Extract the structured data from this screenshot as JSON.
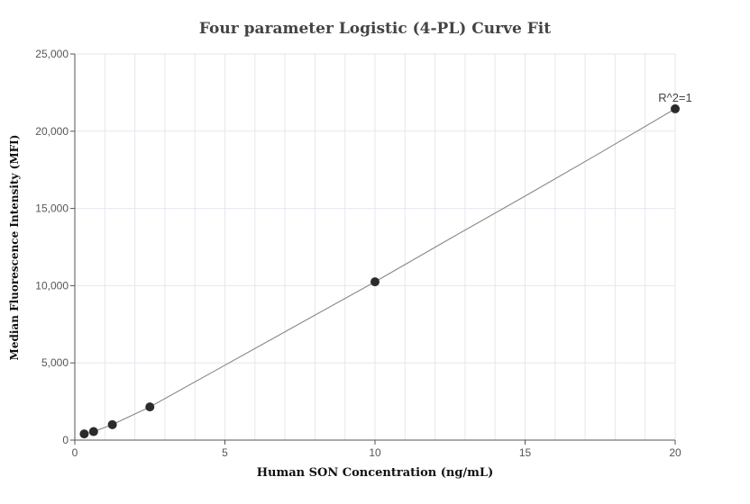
{
  "chart_data": {
    "type": "scatter",
    "title": "Four parameter Logistic (4-PL) Curve Fit",
    "xlabel": "Human SON Concentration (ng/mL)",
    "ylabel": "Median Fluorescence Intensity (MFI)",
    "xlim": [
      0,
      20
    ],
    "ylim": [
      0,
      25000
    ],
    "x_ticks": [
      0,
      5,
      10,
      15,
      20
    ],
    "x_tick_labels": [
      "0",
      "5",
      "10",
      "15",
      "20"
    ],
    "y_ticks": [
      0,
      5000,
      10000,
      15000,
      20000,
      25000
    ],
    "y_tick_labels": [
      "0",
      "5,000",
      "10,000",
      "15,000",
      "20,000",
      "25,000"
    ],
    "grid": true,
    "series": [
      {
        "x": [
          0.313,
          0.625,
          1.25,
          2.5,
          10,
          20
        ],
        "y": [
          400,
          550,
          1000,
          2150,
          10250,
          21450
        ]
      }
    ],
    "fit_curve": {
      "x": [
        0.313,
        0.625,
        1.25,
        2.5,
        5,
        7.5,
        10,
        12.5,
        15,
        17.5,
        20
      ],
      "y": [
        400,
        550,
        1000,
        2150,
        4850,
        7550,
        10250,
        13050,
        15800,
        18600,
        21450
      ]
    },
    "annotation": "R^2=1",
    "colors": {
      "point": "#2b2b2b",
      "line": "#888888",
      "grid": "#e6e6ef"
    }
  }
}
